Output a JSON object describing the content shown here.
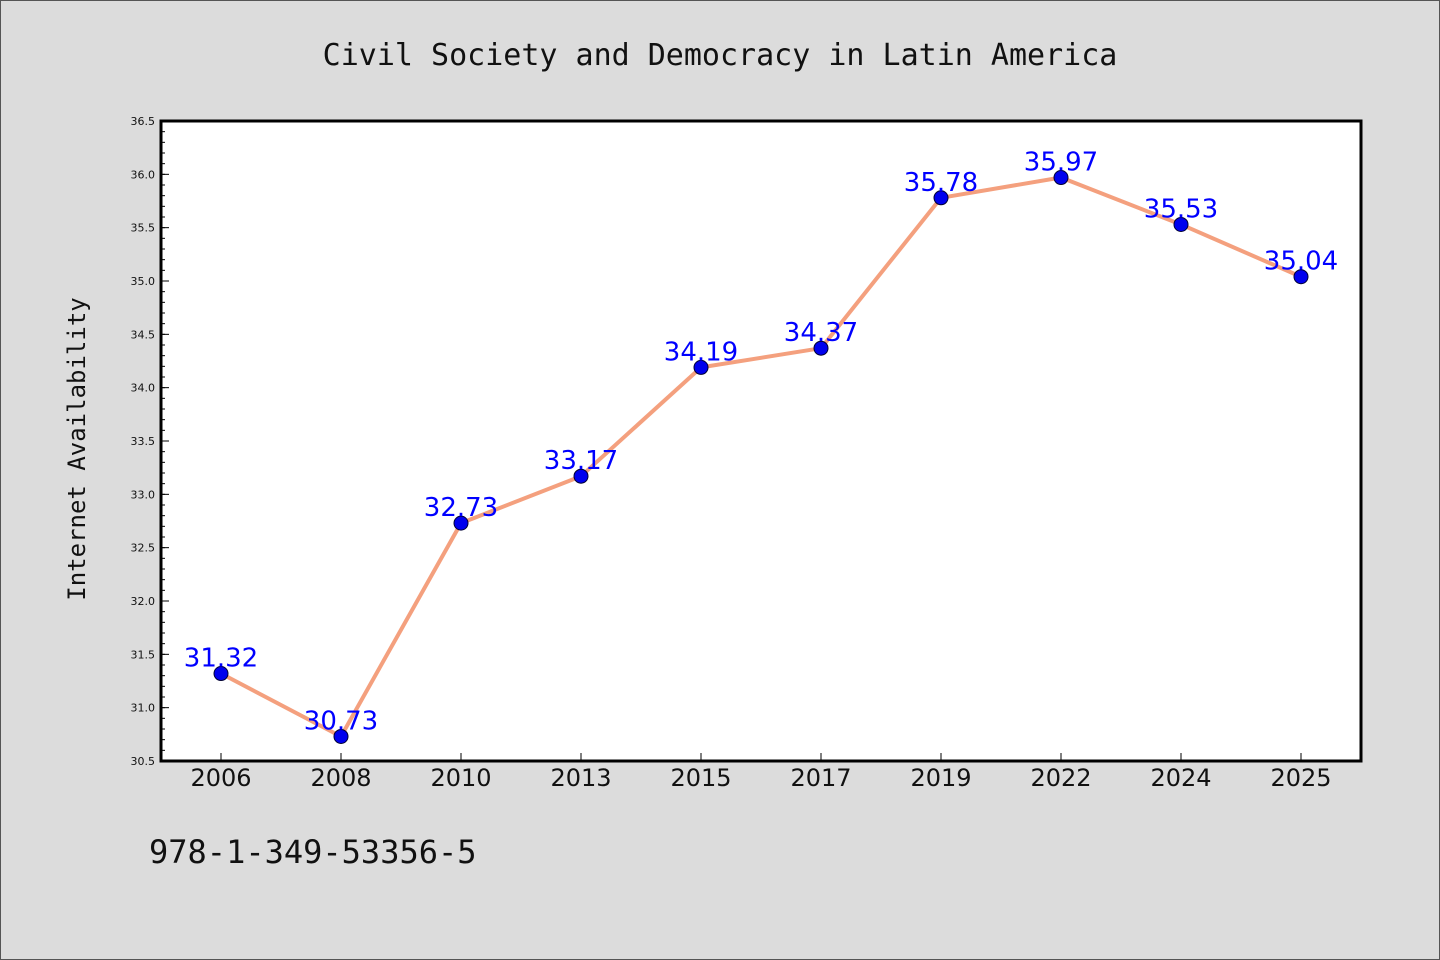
{
  "footer_code": "978-1-349-53356-5",
  "chart_data": {
    "type": "line",
    "title": "Civil Society and Democracy in Latin America",
    "xlabel": "",
    "ylabel": "Internet Availability",
    "categories": [
      "2006",
      "2008",
      "2010",
      "2013",
      "2015",
      "2017",
      "2019",
      "2022",
      "2024",
      "2025"
    ],
    "series": [
      {
        "values": [
          31.32,
          30.73,
          32.73,
          33.17,
          34.19,
          34.37,
          35.78,
          35.97,
          35.53,
          35.04
        ],
        "line_color": "#f4a07e",
        "marker_color": "#0000ee"
      }
    ],
    "data_labels": [
      "31.32",
      "30.73",
      "32.73",
      "33.17",
      "34.19",
      "34.37",
      "35.78",
      "35.97",
      "35.53",
      "35.04"
    ],
    "data_label_color": "#0000ff",
    "ylim": [
      30.5,
      36.5
    ],
    "y_ticks": [
      "30.5",
      "31.0",
      "31.5",
      "32.0",
      "32.5",
      "33.0",
      "33.5",
      "34.0",
      "34.5",
      "35.0",
      "35.5",
      "36.0",
      "36.5"
    ],
    "grid": false,
    "legend": "none"
  }
}
